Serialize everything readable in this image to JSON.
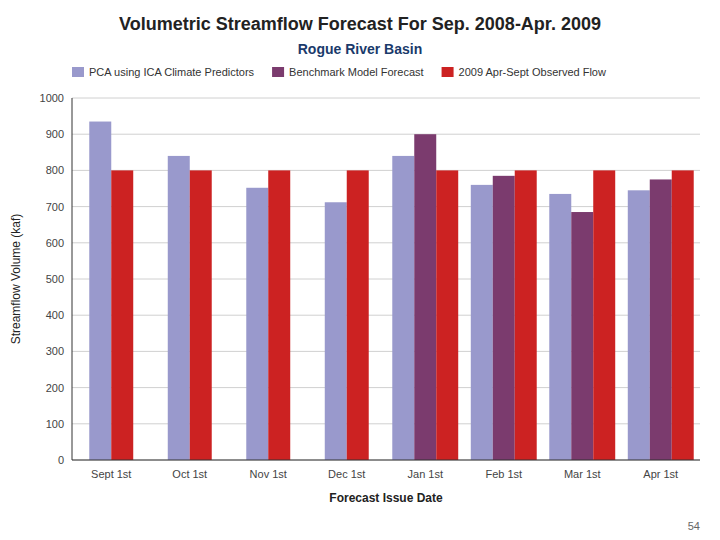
{
  "chart_data": {
    "type": "bar",
    "title": "Volumetric Streamflow Forecast For Sep. 2008-Apr. 2009",
    "subtitle": "Rogue River Basin",
    "x_label": "Forecast Issue Date",
    "y_label": "Streamflow Volume (kaf)",
    "categories": [
      "Sept 1st",
      "Oct 1st",
      "Nov 1st",
      "Dec 1st",
      "Jan 1st",
      "Feb 1st",
      "Mar 1st",
      "Apr 1st"
    ],
    "series": [
      {
        "name": "PCA using ICA Climate Predictors",
        "color": "#9999CC",
        "values": [
          935,
          840,
          752,
          712,
          840,
          760,
          735,
          745
        ]
      },
      {
        "name": "Benchmark Model Forecast",
        "color": "#7B3B6E",
        "values": [
          null,
          null,
          null,
          null,
          900,
          785,
          685,
          775
        ]
      },
      {
        "name": "2009 Apr-Sept Observed Flow",
        "color": "#CC2222",
        "values": [
          800,
          800,
          800,
          800,
          800,
          800,
          800,
          800
        ]
      }
    ],
    "ylim": [
      0,
      1000
    ],
    "yticks": [
      0,
      100,
      200,
      300,
      400,
      500,
      600,
      700,
      800,
      900,
      1000
    ],
    "grid": true,
    "legend": "top",
    "annotations": [
      "54"
    ]
  }
}
